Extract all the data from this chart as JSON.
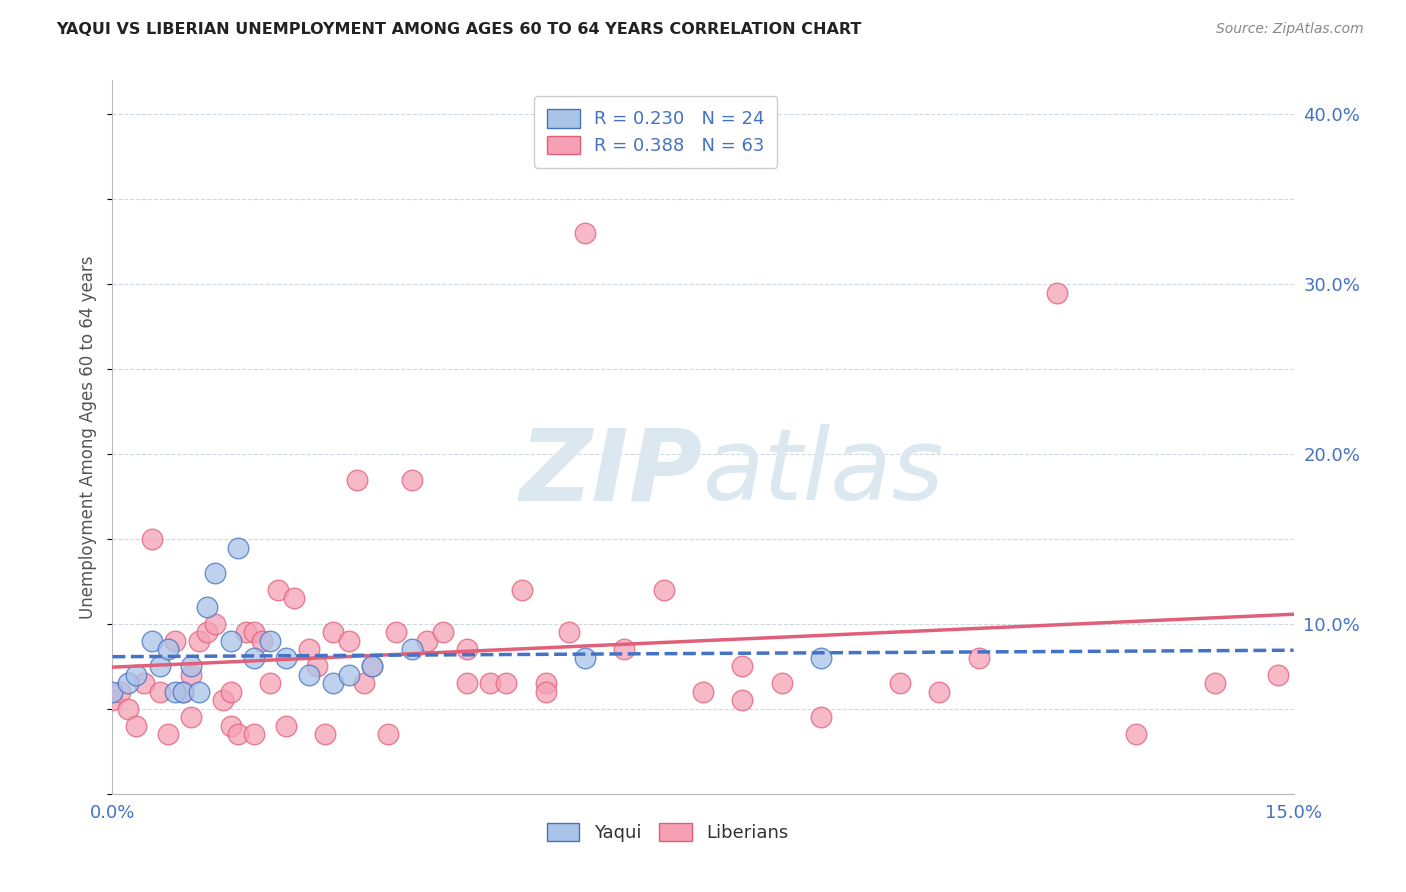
{
  "title": "YAQUI VS LIBERIAN UNEMPLOYMENT AMONG AGES 60 TO 64 YEARS CORRELATION CHART",
  "source": "Source: ZipAtlas.com",
  "ylabel": "Unemployment Among Ages 60 to 64 years",
  "xlim": [
    0.0,
    0.15
  ],
  "ylim": [
    0.0,
    0.42
  ],
  "xticks": [
    0.0,
    0.03,
    0.06,
    0.09,
    0.12,
    0.15
  ],
  "xticklabels": [
    "0.0%",
    "",
    "",
    "",
    "",
    "15.0%"
  ],
  "yticks_right": [
    0.0,
    0.1,
    0.2,
    0.3,
    0.4
  ],
  "yticklabels_right": [
    "",
    "10.0%",
    "20.0%",
    "30.0%",
    "40.0%"
  ],
  "legend_r1": "R = 0.230",
  "legend_n1": "N = 24",
  "legend_r2": "R = 0.388",
  "legend_n2": "N = 63",
  "color_yaqui": "#aac4e8",
  "color_liberian": "#f5a0b5",
  "line_color_yaqui": "#4472c4",
  "line_color_liberian": "#e0607a",
  "watermark_color": "#dce8f0",
  "background_color": "#ffffff",
  "grid_color": "#d0d8e0",
  "tick_color": "#4472c4",
  "title_color": "#222222",
  "source_color": "#888888",
  "yaqui_x": [
    0.0,
    0.002,
    0.003,
    0.005,
    0.006,
    0.007,
    0.008,
    0.009,
    0.01,
    0.011,
    0.012,
    0.013,
    0.015,
    0.016,
    0.018,
    0.02,
    0.022,
    0.025,
    0.028,
    0.03,
    0.033,
    0.038,
    0.06,
    0.09
  ],
  "yaqui_y": [
    0.06,
    0.065,
    0.07,
    0.09,
    0.075,
    0.085,
    0.06,
    0.06,
    0.075,
    0.06,
    0.11,
    0.13,
    0.09,
    0.145,
    0.08,
    0.09,
    0.08,
    0.07,
    0.065,
    0.07,
    0.075,
    0.085,
    0.08,
    0.08
  ],
  "liberian_x": [
    0.0,
    0.001,
    0.002,
    0.003,
    0.004,
    0.005,
    0.006,
    0.007,
    0.008,
    0.009,
    0.01,
    0.01,
    0.011,
    0.012,
    0.013,
    0.014,
    0.015,
    0.015,
    0.016,
    0.017,
    0.018,
    0.018,
    0.019,
    0.02,
    0.021,
    0.022,
    0.023,
    0.025,
    0.026,
    0.027,
    0.028,
    0.03,
    0.031,
    0.032,
    0.033,
    0.035,
    0.036,
    0.038,
    0.04,
    0.042,
    0.045,
    0.048,
    0.05,
    0.052,
    0.055,
    0.058,
    0.06,
    0.065,
    0.07,
    0.075,
    0.08,
    0.085,
    0.09,
    0.1,
    0.105,
    0.11,
    0.12,
    0.13,
    0.14,
    0.148,
    0.055,
    0.08,
    0.045
  ],
  "liberian_y": [
    0.055,
    0.06,
    0.05,
    0.04,
    0.065,
    0.15,
    0.06,
    0.035,
    0.09,
    0.06,
    0.07,
    0.045,
    0.09,
    0.095,
    0.1,
    0.055,
    0.06,
    0.04,
    0.035,
    0.095,
    0.095,
    0.035,
    0.09,
    0.065,
    0.12,
    0.04,
    0.115,
    0.085,
    0.075,
    0.035,
    0.095,
    0.09,
    0.185,
    0.065,
    0.075,
    0.035,
    0.095,
    0.185,
    0.09,
    0.095,
    0.065,
    0.065,
    0.065,
    0.12,
    0.065,
    0.095,
    0.33,
    0.085,
    0.12,
    0.06,
    0.075,
    0.065,
    0.045,
    0.065,
    0.06,
    0.08,
    0.295,
    0.035,
    0.065,
    0.07,
    0.06,
    0.055,
    0.085
  ]
}
